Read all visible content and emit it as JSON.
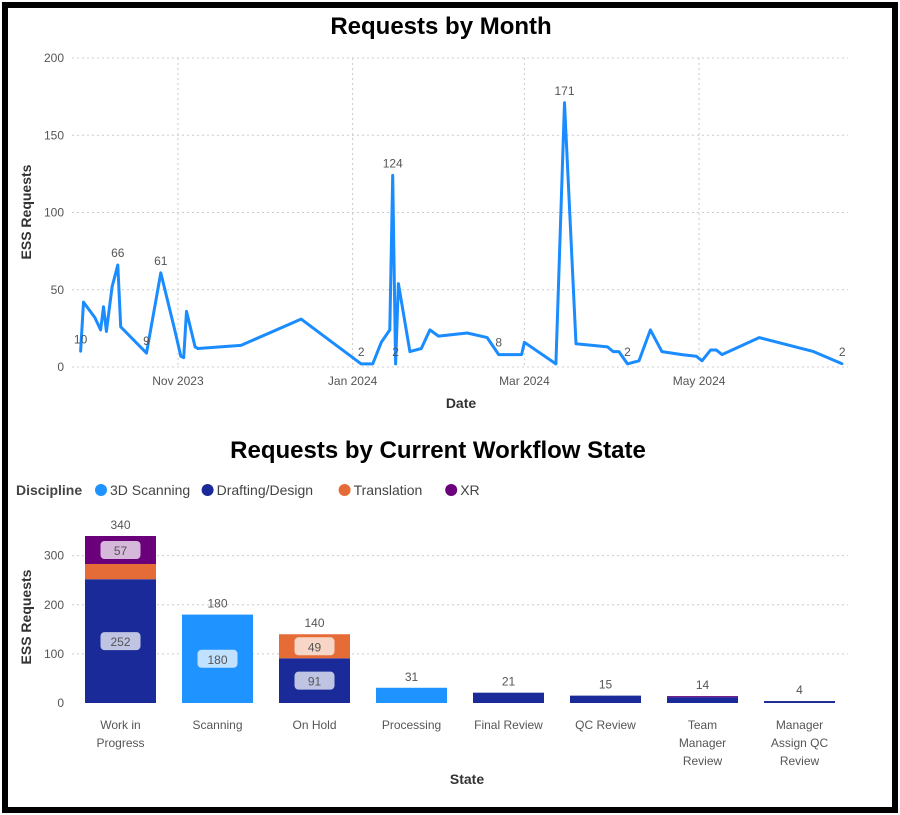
{
  "colors": {
    "line": "#1a8cff",
    "scanning": "#1f93ff",
    "drafting": "#1a2b99",
    "translation": "#e66c37",
    "xr": "#6b007b",
    "grid": "#cccccc"
  },
  "chart_data": [
    {
      "type": "line",
      "title": "Requests by Month",
      "xlabel": "Date",
      "ylabel": "ESS Requests",
      "ylim": [
        0,
        200
      ],
      "yticks": [
        "0",
        "50",
        "100",
        "150",
        "200"
      ],
      "xticks": [
        "Nov 2023",
        "Jan 2024",
        "Mar 2024",
        "May 2024"
      ],
      "grid": true,
      "series": [
        {
          "points": [
            [
              "2023-09-28",
              10
            ],
            [
              "2023-09-29",
              42
            ],
            [
              "2023-10-03",
              32
            ],
            [
              "2023-10-05",
              24
            ],
            [
              "2023-10-06",
              39
            ],
            [
              "2023-10-07",
              23
            ],
            [
              "2023-10-09",
              52
            ],
            [
              "2023-10-11",
              66
            ],
            [
              "2023-10-12",
              26
            ],
            [
              "2023-10-21",
              9
            ],
            [
              "2023-10-26",
              61
            ],
            [
              "2023-10-31",
              23
            ],
            [
              "2023-11-02",
              7
            ],
            [
              "2023-11-03",
              6
            ],
            [
              "2023-11-04",
              36
            ],
            [
              "2023-11-07",
              13
            ],
            [
              "2023-11-08",
              12
            ],
            [
              "2023-11-23",
              14
            ],
            [
              "2023-12-14",
              31
            ],
            [
              "2024-01-04",
              2
            ],
            [
              "2024-01-08",
              2
            ],
            [
              "2024-01-11",
              16
            ],
            [
              "2024-01-14",
              24
            ],
            [
              "2024-01-15",
              124
            ],
            [
              "2024-01-16",
              2
            ],
            [
              "2024-01-17",
              54
            ],
            [
              "2024-01-21",
              10
            ],
            [
              "2024-01-25",
              12
            ],
            [
              "2024-01-28",
              24
            ],
            [
              "2024-01-31",
              20
            ],
            [
              "2024-02-10",
              22
            ],
            [
              "2024-02-17",
              19
            ],
            [
              "2024-02-21",
              8
            ],
            [
              "2024-02-29",
              8
            ],
            [
              "2024-03-01",
              16
            ],
            [
              "2024-03-12",
              2
            ],
            [
              "2024-03-15",
              171
            ],
            [
              "2024-03-19",
              15
            ],
            [
              "2024-03-30",
              13
            ],
            [
              "2024-04-01",
              10
            ],
            [
              "2024-04-03",
              10
            ],
            [
              "2024-04-06",
              2
            ],
            [
              "2024-04-10",
              4
            ],
            [
              "2024-04-14",
              24
            ],
            [
              "2024-04-18",
              10
            ],
            [
              "2024-04-25",
              8
            ],
            [
              "2024-04-30",
              7
            ],
            [
              "2024-05-02",
              4
            ],
            [
              "2024-05-05",
              11
            ],
            [
              "2024-05-07",
              11
            ],
            [
              "2024-05-09",
              8
            ],
            [
              "2024-05-22",
              19
            ],
            [
              "2024-06-10",
              10
            ],
            [
              "2024-06-20",
              2
            ]
          ]
        }
      ],
      "data_labels": [
        {
          "x": "2023-09-28",
          "label": "10"
        },
        {
          "x": "2023-10-11",
          "label": "66"
        },
        {
          "x": "2023-10-21",
          "label": "9"
        },
        {
          "x": "2023-10-26",
          "label": "61"
        },
        {
          "x": "2024-01-04",
          "label": "2"
        },
        {
          "x": "2024-01-15",
          "label": "124"
        },
        {
          "x": "2024-01-16",
          "label": "2"
        },
        {
          "x": "2024-02-21",
          "label": "8"
        },
        {
          "x": "2024-03-15",
          "label": "171"
        },
        {
          "x": "2024-04-06",
          "label": "2"
        },
        {
          "x": "2024-06-20",
          "label": "2"
        }
      ]
    },
    {
      "type": "bar",
      "stacked": true,
      "title": "Requests by Current Workflow State",
      "xlabel": "State",
      "ylabel": "ESS Requests",
      "ylim": [
        0,
        340
      ],
      "yticks": [
        "0",
        "100",
        "200",
        "300"
      ],
      "legend_title": "Discipline",
      "legend_position": "top-left",
      "categories": [
        "Work in Progress",
        "Scanning",
        "On Hold",
        "Processing",
        "Final Review",
        "QC Review",
        "Team Manager Review",
        "Manager Assign QC Review"
      ],
      "category_lines": [
        [
          "Work in",
          "Progress"
        ],
        [
          "Scanning"
        ],
        [
          "On Hold"
        ],
        [
          "Processing"
        ],
        [
          "Final Review"
        ],
        [
          "QC Review"
        ],
        [
          "Team",
          "Manager",
          "Review"
        ],
        [
          "Manager",
          "Assign QC",
          "Review"
        ]
      ],
      "totals": [
        340,
        180,
        140,
        31,
        21,
        15,
        14,
        4
      ],
      "series": [
        {
          "name": "3D Scanning",
          "color_key": "scanning",
          "values": [
            0,
            180,
            0,
            31,
            0,
            0,
            0,
            0
          ],
          "labels": [
            null,
            "180",
            null,
            null,
            null,
            null,
            null,
            null
          ]
        },
        {
          "name": "Drafting/Design",
          "color_key": "drafting",
          "values": [
            252,
            0,
            91,
            0,
            21,
            15,
            12,
            4
          ],
          "labels": [
            "252",
            null,
            "91",
            null,
            null,
            null,
            null,
            null
          ]
        },
        {
          "name": "Translation",
          "color_key": "translation",
          "values": [
            31,
            0,
            49,
            0,
            0,
            0,
            0,
            0
          ],
          "labels": [
            null,
            null,
            "49",
            null,
            null,
            null,
            null,
            null
          ]
        },
        {
          "name": "XR",
          "color_key": "xr",
          "values": [
            57,
            0,
            0,
            0,
            0,
            0,
            2,
            0
          ],
          "labels": [
            "57",
            null,
            null,
            null,
            null,
            null,
            null,
            null
          ]
        }
      ]
    }
  ]
}
